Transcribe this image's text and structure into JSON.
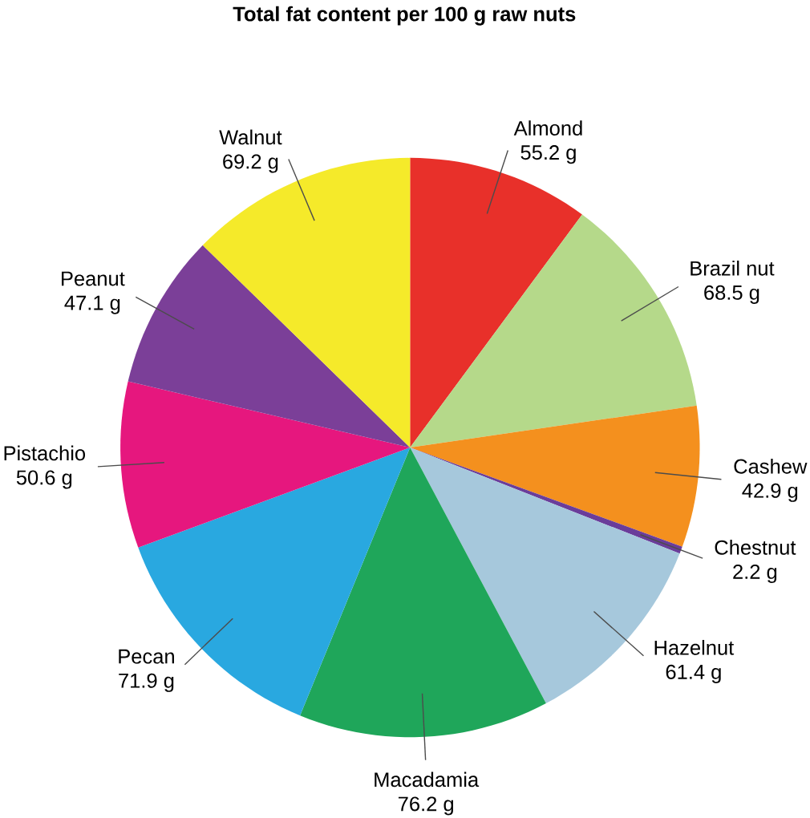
{
  "chart_data": {
    "type": "pie",
    "title": "Total fat content per 100 g raw nuts",
    "categories": [
      "Almond",
      "Brazil nut",
      "Cashew",
      "Chestnut",
      "Hazelnut",
      "Macadamia",
      "Pecan",
      "Pistachio",
      "Peanut",
      "Walnut"
    ],
    "values": [
      55.2,
      68.5,
      42.9,
      2.2,
      61.4,
      76.2,
      71.9,
      50.6,
      47.1,
      69.2
    ],
    "value_labels": [
      "55.2 g",
      "68.5 g",
      "42.9 g",
      "2.2 g",
      "61.4 g",
      "76.2 g",
      "71.9 g",
      "50.6 g",
      "47.1 g",
      "69.2 g"
    ],
    "colors": [
      "#e8302a",
      "#b5d98a",
      "#f4901e",
      "#6a3d9a",
      "#a6c8dc",
      "#1fa65a",
      "#29a8e0",
      "#e6177e",
      "#7b3f98",
      "#f5ea2a"
    ]
  }
}
